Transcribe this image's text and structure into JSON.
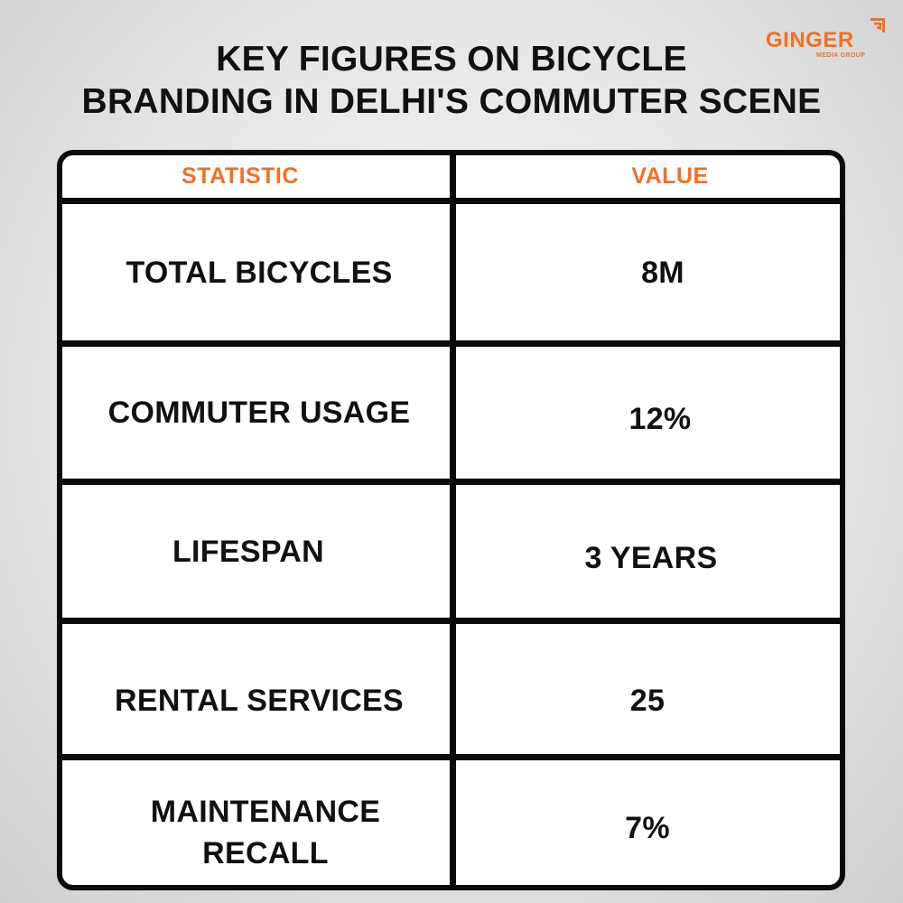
{
  "title": {
    "line1": "KEY FIGURES ON BICYCLE",
    "line2": "BRANDING IN DELHI'S COMMUTER SCENE"
  },
  "logo": {
    "name": "GINGER",
    "sub": "MEDIA GROUP",
    "color": "#f36f21"
  },
  "table": {
    "headers": {
      "statistic": "STATISTIC",
      "value": "VALUE"
    },
    "rows": [
      {
        "statistic": "TOTAL BICYCLES",
        "value": "8M"
      },
      {
        "statistic": "COMMUTER USAGE",
        "value": "12%"
      },
      {
        "statistic": "LIFESPAN",
        "value": "3 YEARS"
      },
      {
        "statistic": "RENTAL SERVICES",
        "value": "25"
      },
      {
        "statistic": "MAINTENANCE\nRECALL",
        "value": "7%"
      }
    ]
  }
}
